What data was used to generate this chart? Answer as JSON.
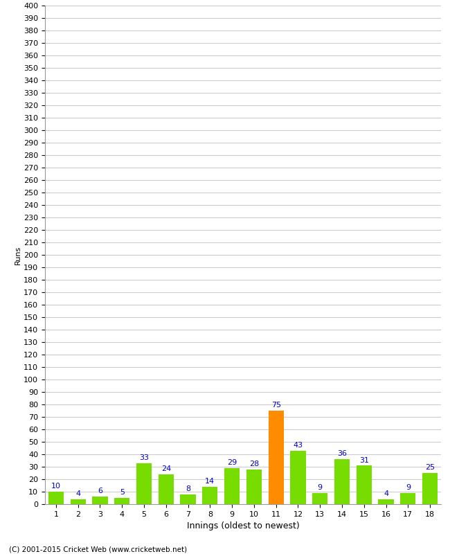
{
  "title": "",
  "xlabel": "Innings (oldest to newest)",
  "ylabel": "Runs",
  "values": [
    10,
    4,
    6,
    5,
    33,
    24,
    8,
    14,
    29,
    28,
    75,
    43,
    9,
    36,
    31,
    4,
    9,
    25
  ],
  "labels": [
    1,
    2,
    3,
    4,
    5,
    6,
    7,
    8,
    9,
    10,
    11,
    12,
    13,
    14,
    15,
    16,
    17,
    18
  ],
  "highlight_index": 10,
  "bar_color": "#77dd00",
  "highlight_color": "#ff8c00",
  "ylim": [
    0,
    400
  ],
  "ytick_step": 10,
  "grid_color": "#cccccc",
  "background_color": "#ffffff",
  "label_color": "#0000cc",
  "footer": "(C) 2001-2015 Cricket Web (www.cricketweb.net)",
  "tick_fontsize": 8,
  "label_fontsize": 8,
  "ylabel_fontsize": 8
}
